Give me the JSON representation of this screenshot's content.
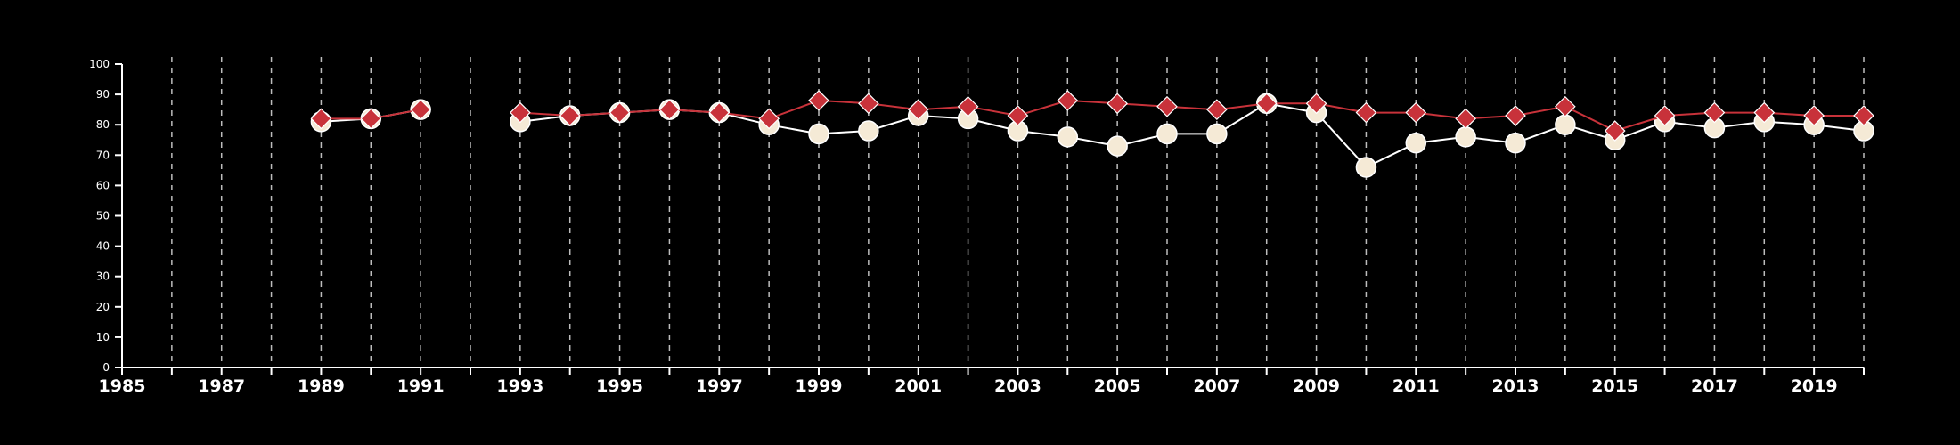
{
  "chart_data": {
    "type": "line",
    "title": "",
    "xlabel": "",
    "ylabel": "",
    "xlim": [
      1985,
      2020
    ],
    "ylim": [
      0,
      100
    ],
    "x_ticks": [
      1985,
      1987,
      1989,
      1991,
      1993,
      1995,
      1997,
      1999,
      2001,
      2003,
      2005,
      2007,
      2009,
      2011,
      2013,
      2015,
      2017,
      2019
    ],
    "y_ticks": [
      0,
      10,
      20,
      30,
      40,
      50,
      60,
      70,
      80,
      90,
      100
    ],
    "grid": "vertical dashed at every year",
    "legend": "none",
    "series": [
      {
        "marker": "circle",
        "color": "#f5ead6",
        "line_color": "#ffffff",
        "points": [
          [
            1989,
            81
          ],
          [
            1990,
            82
          ],
          [
            1991,
            85
          ],
          [
            1993,
            81
          ],
          [
            1994,
            83
          ],
          [
            1995,
            84
          ],
          [
            1996,
            85
          ],
          [
            1997,
            84
          ],
          [
            1998,
            80
          ],
          [
            1999,
            77
          ],
          [
            2000,
            78
          ],
          [
            2001,
            83
          ],
          [
            2002,
            82
          ],
          [
            2003,
            78
          ],
          [
            2004,
            76
          ],
          [
            2005,
            73
          ],
          [
            2006,
            77
          ],
          [
            2007,
            77
          ],
          [
            2008,
            87
          ],
          [
            2009,
            84
          ],
          [
            2010,
            66
          ],
          [
            2011,
            74
          ],
          [
            2012,
            76
          ],
          [
            2013,
            74
          ],
          [
            2014,
            80
          ],
          [
            2015,
            75
          ],
          [
            2016,
            81
          ],
          [
            2017,
            79
          ],
          [
            2018,
            81
          ],
          [
            2019,
            80
          ],
          [
            2020,
            78
          ]
        ]
      },
      {
        "marker": "diamond",
        "color": "#c8323a",
        "line_color": "#c8323a",
        "points": [
          [
            1989,
            82
          ],
          [
            1990,
            82
          ],
          [
            1991,
            85
          ],
          [
            1993,
            84
          ],
          [
            1994,
            83
          ],
          [
            1995,
            84
          ],
          [
            1996,
            85
          ],
          [
            1997,
            84
          ],
          [
            1998,
            82
          ],
          [
            1999,
            88
          ],
          [
            2000,
            87
          ],
          [
            2001,
            85
          ],
          [
            2002,
            86
          ],
          [
            2003,
            83
          ],
          [
            2004,
            88
          ],
          [
            2005,
            87
          ],
          [
            2006,
            86
          ],
          [
            2007,
            85
          ],
          [
            2008,
            87
          ],
          [
            2009,
            87
          ],
          [
            2010,
            84
          ],
          [
            2011,
            84
          ],
          [
            2012,
            82
          ],
          [
            2013,
            83
          ],
          [
            2014,
            86
          ],
          [
            2015,
            78
          ],
          [
            2016,
            83
          ],
          [
            2017,
            84
          ],
          [
            2018,
            84
          ],
          [
            2019,
            83
          ],
          [
            2020,
            83
          ]
        ]
      }
    ]
  }
}
